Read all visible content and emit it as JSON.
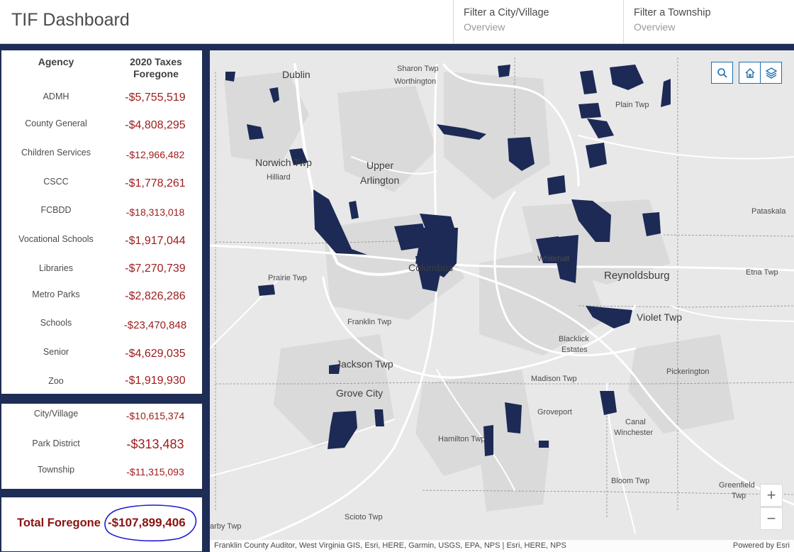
{
  "header": {
    "title": "TIF Dashboard",
    "filters": [
      {
        "label": "Filter a City/Village",
        "sub": "Overview"
      },
      {
        "label": "Filter a Township",
        "sub": "Overview"
      }
    ]
  },
  "agency_table": {
    "col_agency": "Agency",
    "col_taxes": "2020 Taxes Foregone",
    "rows": [
      {
        "name": "ADMH",
        "value": "-$5,755,519"
      },
      {
        "name": "County General",
        "value": "-$4,808,295"
      },
      {
        "name": "Children Services",
        "value": "-$12,966,482"
      },
      {
        "name": "CSCC",
        "value": "-$1,778,261"
      },
      {
        "name": "FCBDD",
        "value": "-$18,313,018"
      },
      {
        "name": "Vocational Schools",
        "value": "-$1,917,044"
      },
      {
        "name": "Libraries",
        "value": "-$7,270,739"
      },
      {
        "name": "Metro Parks",
        "value": "-$2,826,286"
      },
      {
        "name": "Schools",
        "value": "-$23,470,848"
      },
      {
        "name": "Senior",
        "value": "-$4,629,035"
      },
      {
        "name": "Zoo",
        "value": "-$1,919,930"
      }
    ]
  },
  "district_table": {
    "rows": [
      {
        "name": "City/Village",
        "value": "-$10,615,374"
      },
      {
        "name": "Park District",
        "value": "-$313,483"
      },
      {
        "name": "Township",
        "value": "-$11,315,093"
      }
    ]
  },
  "total": {
    "label": "Total Foregone",
    "value": "-$107,899,406"
  },
  "map": {
    "labels": {
      "dublin": "Dublin",
      "sharon": "Sharon Twp",
      "worthington": "Worthington",
      "plain": "Plain Twp",
      "norwich": "Norwich Twp",
      "hilliard": "Hilliard",
      "upper": "Upper",
      "arlington": "Arlington",
      "pataskala": "Pataskala",
      "columbus": "Columbus",
      "whitehall": "Whitehall",
      "reynoldsburg": "Reynoldsburg",
      "etna": "Etna Twp",
      "prairie": "Prairie Twp",
      "violet": "Violet Twp",
      "franklin": "Franklin Twp",
      "blacklick1": "Blacklick",
      "blacklick2": "Estates",
      "jackson": "Jackson Twp",
      "pickerington": "Pickerington",
      "madison": "Madison Twp",
      "grove_city": "Grove City",
      "groveport": "Groveport",
      "canal1": "Canal",
      "canal2": "Winchester",
      "hamilton": "Hamilton Twp",
      "bloom": "Bloom Twp",
      "greenfield1": "Greenfield",
      "greenfield2": "Twp",
      "scioto": "Scioto Twp",
      "darby": "arby Twp"
    },
    "attribution": "Franklin County Auditor, West Virginia GIS, Esri, HERE, Garmin, USGS, EPA, NPS | Esri, HERE, NPS",
    "powered_by": "Powered by Esri",
    "zoom_in": "+",
    "zoom_out": "−",
    "tif_color": "#1c2a55"
  }
}
